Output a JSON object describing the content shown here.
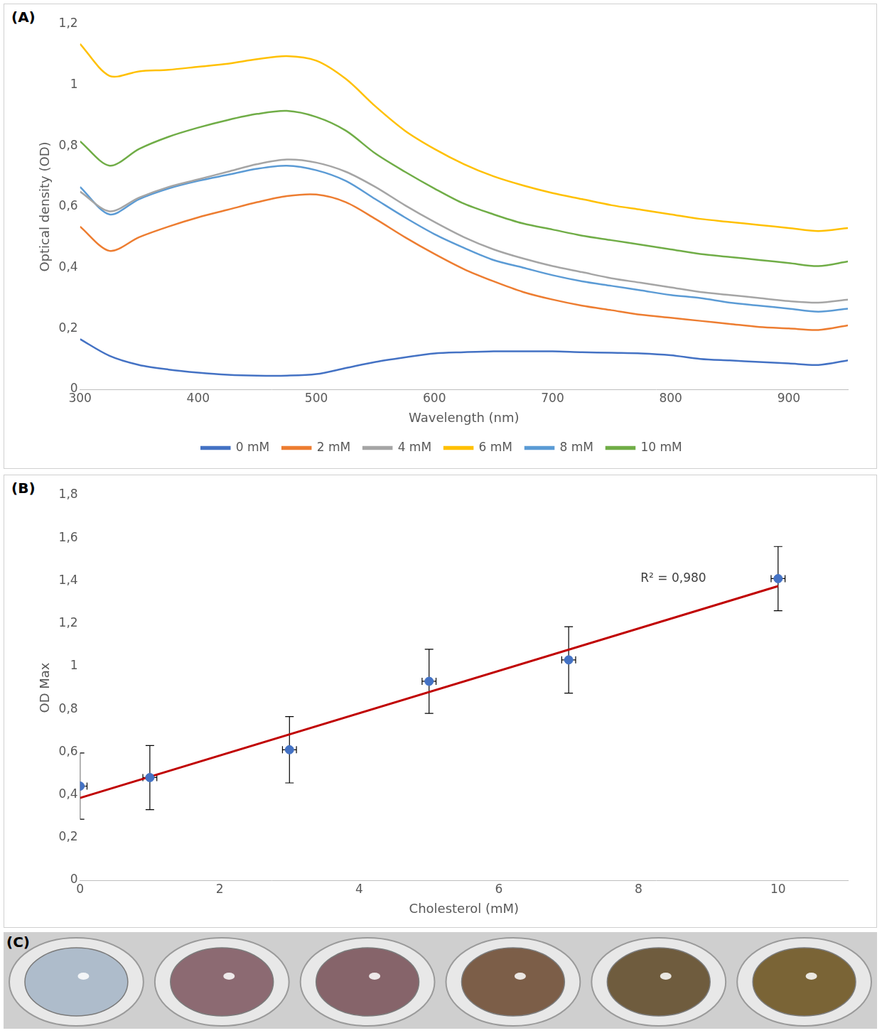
{
  "chart_data": [
    {
      "panel": "(A)",
      "type": "line",
      "x_label": "Wavelength (nm)",
      "y_label": "Optical density (OD)",
      "x": [
        300,
        325,
        350,
        375,
        400,
        425,
        450,
        475,
        500,
        525,
        550,
        575,
        600,
        625,
        650,
        675,
        700,
        725,
        750,
        775,
        800,
        825,
        850,
        875,
        900,
        925,
        950
      ],
      "series": [
        {
          "name": "0 mM",
          "color": "#4472c4",
          "values": [
            0.165,
            0.11,
            0.08,
            0.065,
            0.055,
            0.048,
            0.045,
            0.045,
            0.05,
            0.07,
            0.09,
            0.105,
            0.118,
            0.122,
            0.125,
            0.125,
            0.125,
            0.122,
            0.12,
            0.118,
            0.112,
            0.1,
            0.095,
            0.09,
            0.085,
            0.08,
            0.095
          ]
        },
        {
          "name": "2 mM",
          "color": "#ed7d31",
          "values": [
            0.535,
            0.455,
            0.5,
            0.535,
            0.565,
            0.59,
            0.615,
            0.635,
            0.64,
            0.615,
            0.56,
            0.5,
            0.445,
            0.395,
            0.355,
            0.32,
            0.295,
            0.275,
            0.26,
            0.245,
            0.235,
            0.225,
            0.215,
            0.205,
            0.2,
            0.195,
            0.21
          ]
        },
        {
          "name": "4 mM",
          "color": "#a5a5a5",
          "values": [
            0.65,
            0.585,
            0.63,
            0.665,
            0.69,
            0.715,
            0.74,
            0.755,
            0.745,
            0.715,
            0.665,
            0.605,
            0.55,
            0.5,
            0.46,
            0.43,
            0.405,
            0.385,
            0.365,
            0.35,
            0.335,
            0.32,
            0.31,
            0.3,
            0.29,
            0.285,
            0.295
          ]
        },
        {
          "name": "6 mM",
          "color": "#ffc000",
          "values": [
            1.135,
            1.03,
            1.045,
            1.05,
            1.06,
            1.07,
            1.085,
            1.095,
            1.08,
            1.02,
            0.93,
            0.85,
            0.79,
            0.74,
            0.7,
            0.67,
            0.645,
            0.625,
            0.605,
            0.59,
            0.575,
            0.56,
            0.55,
            0.54,
            0.53,
            0.52,
            0.53
          ]
        },
        {
          "name": "8 mM",
          "color": "#5b9bd5",
          "values": [
            0.665,
            0.575,
            0.625,
            0.66,
            0.685,
            0.705,
            0.725,
            0.735,
            0.72,
            0.685,
            0.625,
            0.565,
            0.51,
            0.465,
            0.425,
            0.4,
            0.375,
            0.355,
            0.34,
            0.325,
            0.31,
            0.3,
            0.285,
            0.275,
            0.265,
            0.255,
            0.265
          ]
        },
        {
          "name": "10 mM",
          "color": "#70ad47",
          "values": [
            0.815,
            0.735,
            0.79,
            0.83,
            0.86,
            0.885,
            0.905,
            0.915,
            0.895,
            0.85,
            0.775,
            0.715,
            0.66,
            0.61,
            0.575,
            0.545,
            0.525,
            0.505,
            0.49,
            0.475,
            0.46,
            0.445,
            0.435,
            0.425,
            0.415,
            0.405,
            0.42
          ]
        }
      ],
      "xlim": [
        300,
        950
      ],
      "xticks": [
        300,
        400,
        500,
        600,
        700,
        800,
        900
      ],
      "ylim": [
        0,
        1.2
      ],
      "yticks": [
        0,
        {
          "value": 0.2,
          "label": "0,2"
        },
        {
          "value": 0.4,
          "label": "0,4"
        },
        {
          "value": 0.6,
          "label": "0,6"
        },
        {
          "value": 0.8,
          "label": "0,8"
        },
        1,
        {
          "value": 1.2,
          "label": "1,2"
        }
      ],
      "legend": "bottom",
      "grid": false
    },
    {
      "panel": "(B)",
      "type": "scatter",
      "x_label": "Cholesterol (mM)",
      "y_label": "OD Max",
      "x": [
        0,
        1,
        3,
        5,
        7,
        10
      ],
      "values": [
        0.44,
        0.48,
        0.61,
        0.93,
        1.03,
        1.41
      ],
      "y_error": [
        0.155,
        0.15,
        0.155,
        0.15,
        0.155,
        0.15
      ],
      "x_error": [
        0.1,
        0.1,
        0.1,
        0.1,
        0.1,
        0.1
      ],
      "color": "#4472c4",
      "marker": "circle",
      "trendline": {
        "x": [
          0,
          10
        ],
        "values": [
          0.385,
          1.375
        ],
        "color": "#c00000"
      },
      "annotations": [
        {
          "text": "R² = 0,980",
          "x": 8.5,
          "y": 1.41
        }
      ],
      "xlim": [
        0,
        11
      ],
      "xticks": [
        0,
        2,
        4,
        6,
        8,
        10
      ],
      "ylim": [
        0,
        1.8
      ],
      "yticks": [
        0,
        {
          "value": 0.2,
          "label": "0,2"
        },
        {
          "value": 0.4,
          "label": "0,4"
        },
        {
          "value": 0.6,
          "label": "0,6"
        },
        {
          "value": 0.8,
          "label": "0,8"
        },
        1,
        {
          "value": 1.2,
          "label": "1,2"
        },
        {
          "value": 1.4,
          "label": "1,4"
        },
        {
          "value": 1.6,
          "label": "1,6"
        },
        {
          "value": 1.8,
          "label": "1,8"
        }
      ],
      "grid": false
    },
    {
      "panel": "(C)",
      "type": "image",
      "colors": [
        "#aebccb",
        "#8c6a72",
        "#86646a",
        "#7c5e48",
        "#6f5c3e",
        "#7a6436"
      ]
    }
  ]
}
